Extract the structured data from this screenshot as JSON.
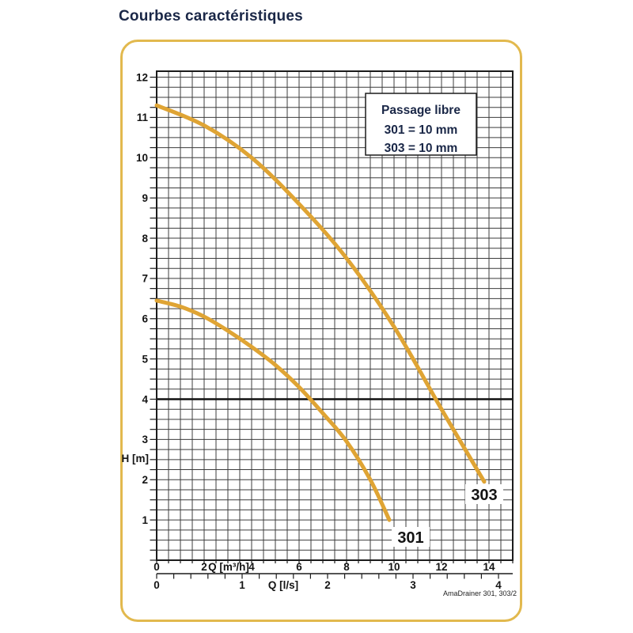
{
  "page": {
    "title": "Courbes caractéristiques"
  },
  "chart_data": {
    "type": "line",
    "title": "Courbes caractéristiques",
    "y_axis": {
      "label": "H [m]",
      "ticks": [
        1,
        2,
        3,
        4,
        5,
        6,
        7,
        8,
        9,
        10,
        11,
        12
      ],
      "min": 0,
      "max": 12.15
    },
    "x_axis_primary": {
      "label": "Q [m³/h]",
      "ticks": [
        0,
        2,
        4,
        6,
        8,
        10,
        12,
        14
      ],
      "min": 0,
      "max": 15
    },
    "x_axis_secondary": {
      "label": "Q [l/s]",
      "ticks": [
        0,
        1,
        2,
        3,
        4
      ],
      "minor_step": 0.2
    },
    "grid": {
      "on": true,
      "x_minor_step_m3h": 0.5,
      "y_minor_step_m": 0.25
    },
    "reference_line": {
      "H": 4
    },
    "series": [
      {
        "name": "301",
        "x": [
          0,
          1,
          2,
          3,
          4,
          5,
          6,
          7,
          8,
          9,
          9.8
        ],
        "y": [
          6.45,
          6.3,
          6.05,
          5.7,
          5.3,
          4.85,
          4.3,
          3.65,
          2.95,
          2.0,
          1.0
        ]
      },
      {
        "name": "303",
        "x": [
          0,
          2,
          4,
          6,
          8,
          10,
          12,
          13.8
        ],
        "y": [
          11.3,
          10.8,
          10.0,
          8.85,
          7.5,
          5.8,
          3.75,
          1.95
        ]
      }
    ],
    "legend": {
      "title": "Passage libre",
      "lines": [
        "301 = 10 mm",
        "303 = 10 mm"
      ],
      "position": "top-right"
    },
    "footnote": "AmaDrainer 301, 303/2",
    "colors": {
      "curve": "#dfa434",
      "grid": "#3c3c3c",
      "panel_border": "#e2b94e",
      "title_text": "#1a2747",
      "axis_text": "#141414"
    }
  }
}
